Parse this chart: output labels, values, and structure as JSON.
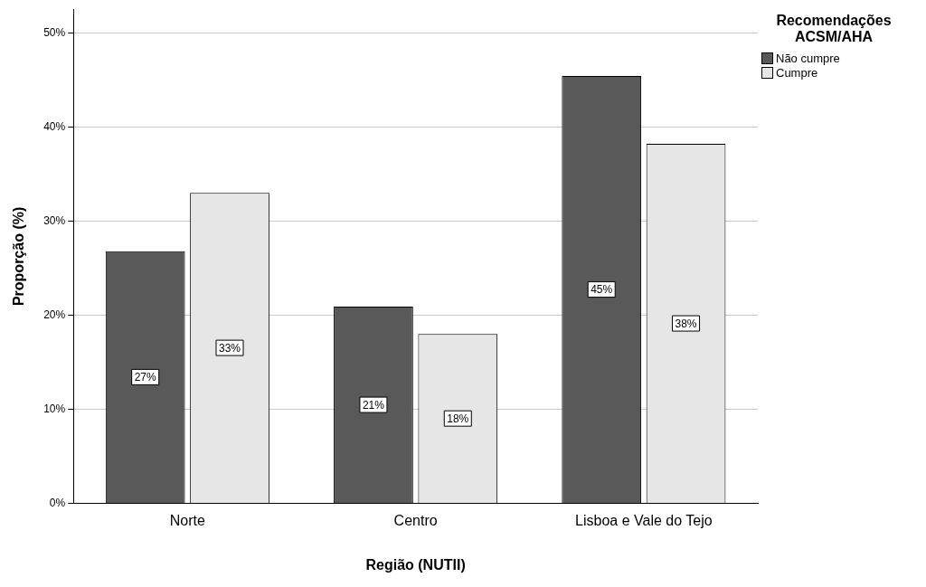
{
  "chart_data": {
    "type": "bar",
    "xlabel": "Região (NUTII)",
    "ylabel": "Proporção (%)",
    "legend_title": "Recomendações ACSM/AHA",
    "categories": [
      "Norte",
      "Centro",
      "Lisboa e Vale do Tejo"
    ],
    "series": [
      {
        "name": "Não cumpre",
        "color": "#595959",
        "values": [
          26.8,
          20.9,
          45.4
        ],
        "value_labels": [
          "27%",
          "21%",
          "45%"
        ]
      },
      {
        "name": "Cumpre",
        "color": "#e6e6e6",
        "values": [
          33.0,
          18.0,
          38.2
        ],
        "value_labels": [
          "33%",
          "18%",
          "38%"
        ]
      }
    ],
    "ylim": [
      0,
      52.5
    ],
    "yticks": [
      {
        "value": 0,
        "label": "0%"
      },
      {
        "value": 10,
        "label": "10%"
      },
      {
        "value": 20,
        "label": "20%"
      },
      {
        "value": 30,
        "label": "30%"
      },
      {
        "value": 40,
        "label": "40%"
      },
      {
        "value": 50,
        "label": "50%"
      }
    ],
    "grid": "y",
    "legend": "top right"
  }
}
